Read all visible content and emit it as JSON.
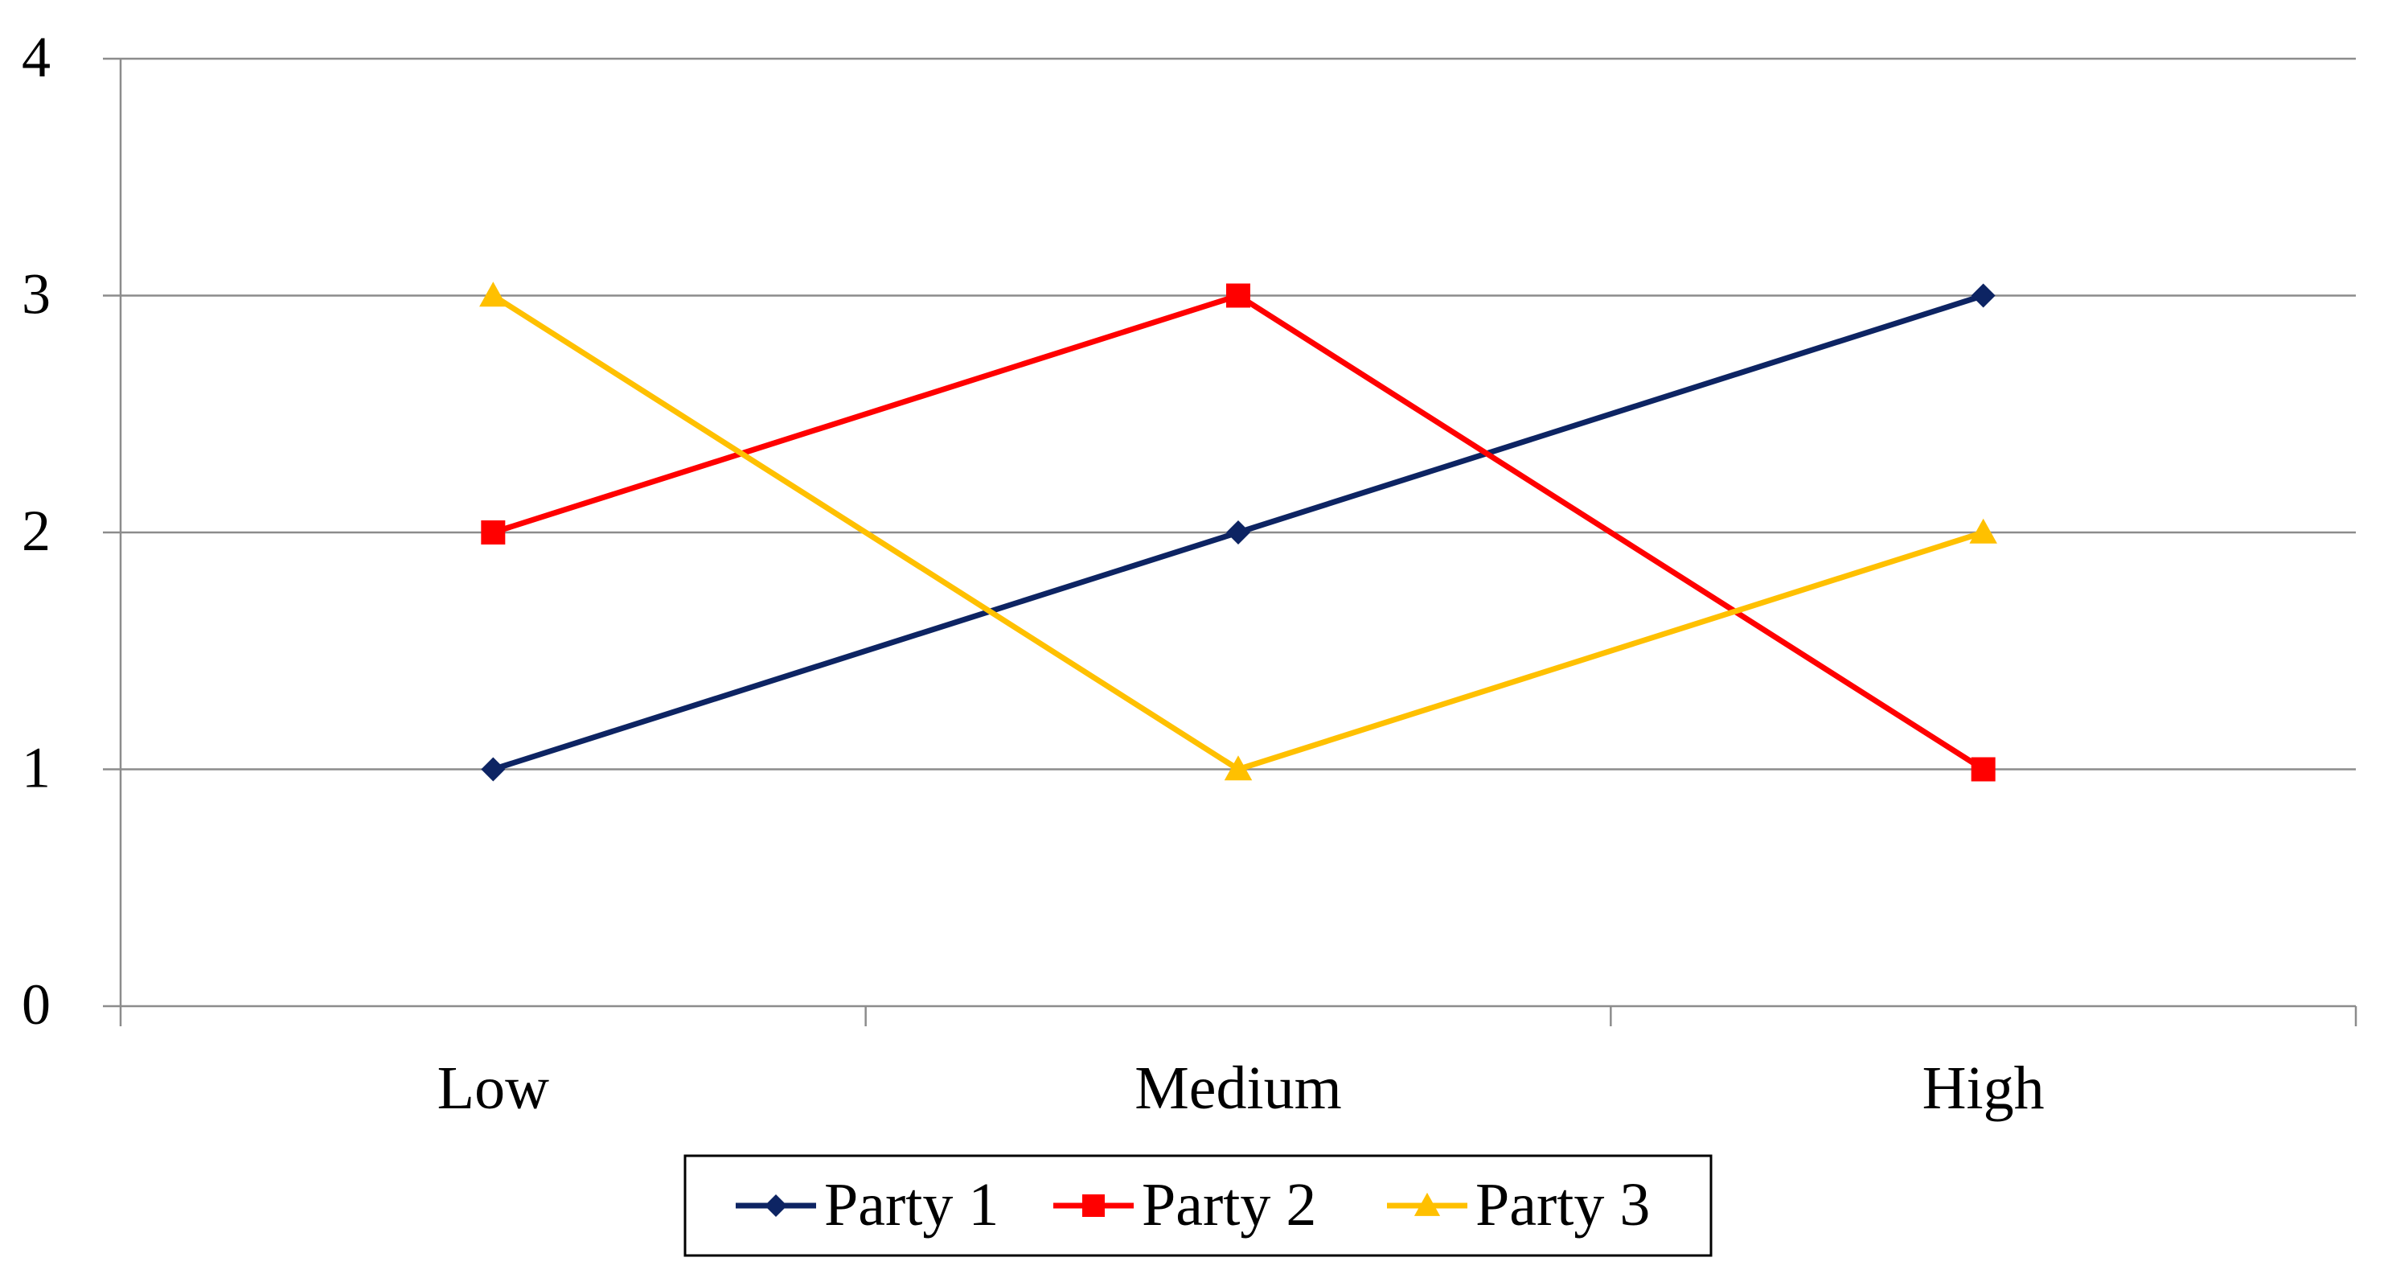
{
  "chart_data": {
    "type": "line",
    "title": "",
    "xlabel": "",
    "ylabel": "",
    "categories": [
      "Low",
      "Medium",
      "High"
    ],
    "ylim": [
      0,
      4
    ],
    "yticks": [
      "0",
      "1",
      "2",
      "3",
      "4"
    ],
    "grid": "horizontal",
    "legend_position": "bottom",
    "series": [
      {
        "name": "Party 1",
        "values": [
          1,
          2,
          3
        ],
        "color": "#0d2463",
        "marker": "diamond"
      },
      {
        "name": "Party 2",
        "values": [
          2,
          3,
          1
        ],
        "color": "#ff0000",
        "marker": "square"
      },
      {
        "name": "Party 3",
        "values": [
          3,
          1,
          2
        ],
        "color": "#ffc000",
        "marker": "triangle"
      }
    ]
  }
}
